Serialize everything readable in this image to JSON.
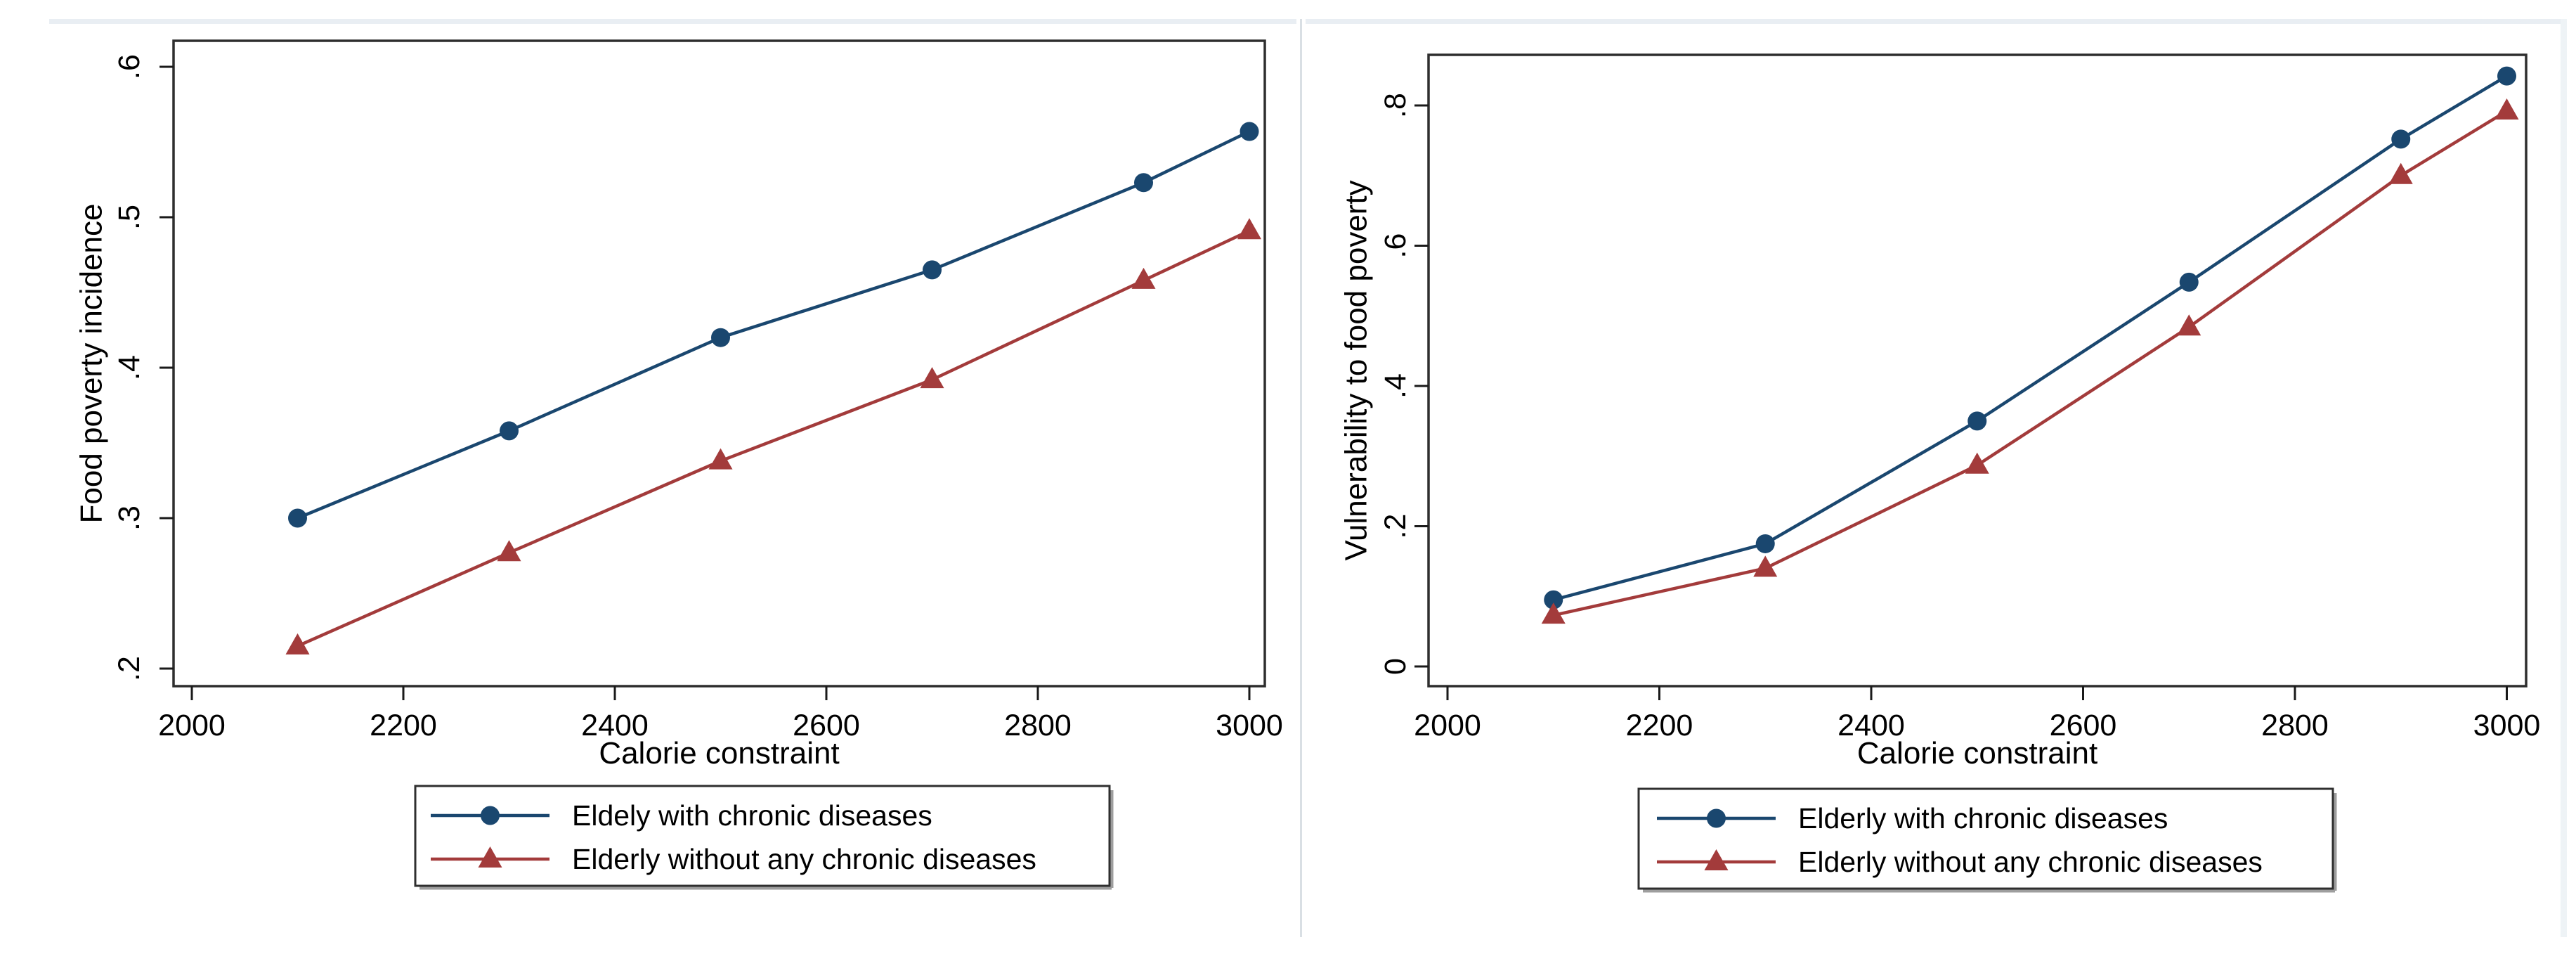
{
  "page": {
    "background": "#ffffff",
    "decor_strip_color": "#e9eef3",
    "divider_color": "#d9dfe4"
  },
  "styles": {
    "frame_color": "#2e2e2e",
    "tick_color": "#1a1a1a",
    "text_color": "#000000",
    "legend_border_color": "#2f2f2f",
    "legend_shadow_color": "#9e9e9e",
    "accent_blue": "#1a476f",
    "accent_red": "#a33b3b"
  },
  "chart_data": [
    {
      "type": "line",
      "panel": "left",
      "title": "",
      "xlabel": "Calorie constraint",
      "ylabel": "Food poverty incidence",
      "x_ticks": [
        2000,
        2200,
        2400,
        2600,
        2800,
        3000
      ],
      "y_ticks": [
        {
          "label": ".2",
          "value": 0.2
        },
        {
          "label": ".3",
          "value": 0.3
        },
        {
          "label": ".4",
          "value": 0.4
        },
        {
          "label": ".5",
          "value": 0.5
        },
        {
          "label": ".6",
          "value": 0.6
        }
      ],
      "x": [
        2100,
        2300,
        2500,
        2700,
        2900,
        3000
      ],
      "xlim": [
        1983,
        3015
      ],
      "ylim": [
        0.188,
        0.63
      ],
      "grid": false,
      "legend_position": "bottom",
      "series": [
        {
          "name": "Eldely with chronic diseases",
          "color": "#1a476f",
          "marker": "circle",
          "values": [
            0.3,
            0.358,
            0.42,
            0.465,
            0.523,
            0.557
          ]
        },
        {
          "name": "Elderly without any chronic diseases",
          "color": "#a33b3b",
          "marker": "triangle",
          "values": [
            0.215,
            0.277,
            0.338,
            0.392,
            0.458,
            0.491
          ]
        }
      ]
    },
    {
      "type": "line",
      "panel": "right",
      "title": "",
      "xlabel": "Calorie constraint",
      "ylabel": "Vulnerability to food poverty",
      "x_ticks": [
        2000,
        2200,
        2400,
        2600,
        2800,
        3000
      ],
      "y_ticks": [
        {
          "label": "0",
          "value": 0.0
        },
        {
          "label": ".2",
          "value": 0.2
        },
        {
          "label": ".4",
          "value": 0.4
        },
        {
          "label": ".6",
          "value": 0.6
        },
        {
          "label": ".8",
          "value": 0.8
        }
      ],
      "x": [
        2100,
        2300,
        2500,
        2700,
        2900,
        3000
      ],
      "xlim": [
        1982,
        3018
      ],
      "ylim": [
        -0.028,
        0.872
      ],
      "grid": false,
      "legend_position": "bottom",
      "series": [
        {
          "name": "Elderly with chronic diseases",
          "color": "#1a476f",
          "marker": "circle",
          "values": [
            0.095,
            0.175,
            0.35,
            0.548,
            0.752,
            0.842
          ]
        },
        {
          "name": "Elderly without any chronic diseases",
          "color": "#a33b3b",
          "marker": "triangle",
          "values": [
            0.073,
            0.14,
            0.287,
            0.484,
            0.7,
            0.792
          ]
        }
      ]
    }
  ]
}
